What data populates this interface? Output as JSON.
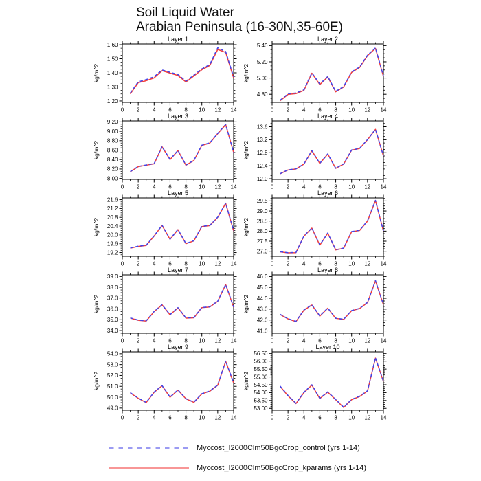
{
  "header": {
    "title": "Soil Liquid Water",
    "subtitle": "Arabian Peninsula (16-30N,35-60E)"
  },
  "legend": {
    "position": "bottom-left",
    "items": [
      {
        "label": "Myccost_I2000Clm50BgcCrop_control (yrs 1-14)",
        "color": "#4444e8",
        "style": "dashed"
      },
      {
        "label": "Myccost_I2000Clm50BgcCrop_kparams (yrs 1-14)",
        "color": "#f23b3b",
        "style": "solid"
      }
    ]
  },
  "chart_data": [
    {
      "type": "line",
      "title": "Layer 1",
      "ylabel": "kg/m^2",
      "x": [
        1,
        2,
        3,
        4,
        5,
        6,
        7,
        8,
        9,
        10,
        11,
        12,
        13,
        14
      ],
      "xlim": [
        0,
        14
      ],
      "xticks": [
        0,
        2,
        4,
        6,
        8,
        10,
        12,
        14
      ],
      "ylim": [
        1.19,
        1.605
      ],
      "yticks": [
        1.2,
        1.3,
        1.4,
        1.5,
        1.6
      ],
      "decimals": 2,
      "grid": false,
      "series": [
        {
          "name": "control",
          "color": "#4444e8",
          "style": "dashed",
          "values": [
            1.256,
            1.336,
            1.352,
            1.372,
            1.421,
            1.404,
            1.388,
            1.341,
            1.384,
            1.428,
            1.459,
            1.578,
            1.551,
            1.371
          ]
        },
        {
          "name": "kparams",
          "color": "#f23b3b",
          "style": "solid",
          "values": [
            1.25,
            1.33,
            1.344,
            1.364,
            1.415,
            1.398,
            1.381,
            1.335,
            1.378,
            1.422,
            1.452,
            1.566,
            1.545,
            1.364
          ]
        }
      ]
    },
    {
      "type": "line",
      "title": "Layer 2",
      "ylabel": "kg/m^2",
      "x": [
        1,
        2,
        3,
        4,
        5,
        6,
        7,
        8,
        9,
        10,
        11,
        12,
        13,
        14
      ],
      "xlim": [
        0,
        14
      ],
      "xticks": [
        0,
        2,
        4,
        6,
        8,
        10,
        12,
        14
      ],
      "ylim": [
        4.7,
        5.42
      ],
      "yticks": [
        4.8,
        5.0,
        5.2,
        5.4
      ],
      "decimals": 2,
      "grid": false,
      "series": [
        {
          "name": "control",
          "color": "#4444e8",
          "style": "dashed",
          "values": [
            4.726,
            4.806,
            4.816,
            4.856,
            5.065,
            4.927,
            5.02,
            4.836,
            4.896,
            5.076,
            5.136,
            5.282,
            5.372,
            5.026
          ]
        },
        {
          "name": "kparams",
          "color": "#f23b3b",
          "style": "solid",
          "values": [
            4.72,
            4.798,
            4.808,
            4.848,
            5.06,
            4.92,
            5.014,
            4.83,
            4.89,
            5.07,
            5.13,
            5.276,
            5.366,
            5.02
          ]
        }
      ]
    },
    {
      "type": "line",
      "title": "Layer 3",
      "ylabel": "kg/m^2",
      "x": [
        1,
        2,
        3,
        4,
        5,
        6,
        7,
        8,
        9,
        10,
        11,
        12,
        13,
        14
      ],
      "xlim": [
        0,
        14
      ],
      "xticks": [
        0,
        2,
        4,
        6,
        8,
        10,
        12,
        14
      ],
      "ylim": [
        7.98,
        9.22
      ],
      "yticks": [
        8.0,
        8.2,
        8.4,
        8.6,
        8.8,
        9.0,
        9.2
      ],
      "decimals": 2,
      "grid": false,
      "series": [
        {
          "name": "control",
          "color": "#4444e8",
          "style": "dashed",
          "values": [
            8.145,
            8.255,
            8.285,
            8.315,
            8.675,
            8.405,
            8.595,
            8.285,
            8.385,
            8.705,
            8.755,
            8.955,
            9.145,
            8.555
          ]
        },
        {
          "name": "kparams",
          "color": "#f23b3b",
          "style": "solid",
          "values": [
            8.14,
            8.25,
            8.28,
            8.31,
            8.67,
            8.4,
            8.59,
            8.28,
            8.38,
            8.7,
            8.75,
            8.95,
            9.14,
            8.55
          ]
        }
      ]
    },
    {
      "type": "line",
      "title": "Layer 4",
      "ylabel": "kg/m^2",
      "x": [
        1,
        2,
        3,
        4,
        5,
        6,
        7,
        8,
        9,
        10,
        11,
        12,
        13,
        14
      ],
      "xlim": [
        0,
        14
      ],
      "xticks": [
        0,
        2,
        4,
        6,
        8,
        10,
        12,
        14
      ],
      "ylim": [
        11.98,
        13.78
      ],
      "yticks": [
        12.0,
        12.4,
        12.8,
        13.2,
        13.6
      ],
      "decimals": 1,
      "grid": false,
      "series": [
        {
          "name": "control",
          "color": "#4444e8",
          "style": "dashed",
          "values": [
            12.155,
            12.275,
            12.305,
            12.455,
            12.865,
            12.475,
            12.765,
            12.325,
            12.455,
            12.885,
            12.935,
            13.205,
            13.525,
            12.705
          ]
        },
        {
          "name": "kparams",
          "color": "#f23b3b",
          "style": "solid",
          "values": [
            12.15,
            12.27,
            12.3,
            12.45,
            12.86,
            12.47,
            12.76,
            12.32,
            12.45,
            12.88,
            12.93,
            13.2,
            13.52,
            12.7
          ]
        }
      ]
    },
    {
      "type": "line",
      "title": "Layer 5",
      "ylabel": "kg/m^2",
      "x": [
        1,
        2,
        3,
        4,
        5,
        6,
        7,
        8,
        9,
        10,
        11,
        12,
        13,
        14
      ],
      "xlim": [
        0,
        14
      ],
      "xticks": [
        0,
        2,
        4,
        6,
        8,
        10,
        12,
        14
      ],
      "ylim": [
        19.03,
        21.68
      ],
      "yticks": [
        19.2,
        19.6,
        20.0,
        20.4,
        20.8,
        21.2,
        21.6
      ],
      "decimals": 1,
      "grid": false,
      "series": [
        {
          "name": "control",
          "color": "#4444e8",
          "style": "dashed",
          "values": [
            19.41,
            19.49,
            19.53,
            19.96,
            20.44,
            19.81,
            20.25,
            19.61,
            19.74,
            20.39,
            20.43,
            20.81,
            21.44,
            20.19
          ]
        },
        {
          "name": "kparams",
          "color": "#f23b3b",
          "style": "solid",
          "values": [
            19.4,
            19.48,
            19.52,
            19.95,
            20.43,
            19.8,
            20.24,
            19.6,
            19.73,
            20.38,
            20.42,
            20.8,
            21.43,
            20.18
          ]
        }
      ]
    },
    {
      "type": "line",
      "title": "Layer 6",
      "ylabel": "kg/m^2",
      "x": [
        1,
        2,
        3,
        4,
        5,
        6,
        7,
        8,
        9,
        10,
        11,
        12,
        13,
        14
      ],
      "xlim": [
        0,
        14
      ],
      "xticks": [
        0,
        2,
        4,
        6,
        8,
        10,
        12,
        14
      ],
      "ylim": [
        26.75,
        29.65
      ],
      "yticks": [
        27.0,
        27.5,
        28.0,
        28.5,
        29.0,
        29.5
      ],
      "decimals": 1,
      "grid": false,
      "series": [
        {
          "name": "control",
          "color": "#4444e8",
          "style": "dashed",
          "values": [
            26.98,
            26.93,
            26.94,
            27.76,
            28.16,
            27.31,
            27.91,
            27.08,
            27.16,
            27.98,
            28.04,
            28.51,
            29.53,
            28.01
          ]
        },
        {
          "name": "kparams",
          "color": "#f23b3b",
          "style": "solid",
          "values": [
            26.97,
            26.92,
            26.93,
            27.75,
            28.15,
            27.3,
            27.9,
            27.07,
            27.15,
            27.97,
            28.03,
            28.5,
            29.52,
            28.0
          ]
        }
      ]
    },
    {
      "type": "line",
      "title": "Layer 7",
      "ylabel": "kg/m^2",
      "x": [
        1,
        2,
        3,
        4,
        5,
        6,
        7,
        8,
        9,
        10,
        11,
        12,
        13,
        14
      ],
      "xlim": [
        0,
        14
      ],
      "xticks": [
        0,
        2,
        4,
        6,
        8,
        10,
        12,
        14
      ],
      "ylim": [
        33.75,
        39.15
      ],
      "yticks": [
        34.0,
        35.0,
        36.0,
        37.0,
        38.0,
        39.0
      ],
      "decimals": 1,
      "grid": false,
      "series": [
        {
          "name": "control",
          "color": "#4444e8",
          "style": "dashed",
          "values": [
            35.17,
            34.97,
            34.9,
            35.77,
            36.4,
            35.47,
            36.12,
            35.17,
            35.2,
            36.14,
            36.2,
            36.72,
            38.27,
            36.17
          ]
        },
        {
          "name": "kparams",
          "color": "#f23b3b",
          "style": "solid",
          "values": [
            35.15,
            34.95,
            34.88,
            35.75,
            36.38,
            35.45,
            36.1,
            35.15,
            35.18,
            36.12,
            36.18,
            36.7,
            38.25,
            36.15
          ]
        }
      ]
    },
    {
      "type": "line",
      "title": "Layer 8",
      "ylabel": "kg/m^2",
      "x": [
        1,
        2,
        3,
        4,
        5,
        6,
        7,
        8,
        9,
        10,
        11,
        12,
        13,
        14
      ],
      "xlim": [
        0,
        14
      ],
      "xticks": [
        0,
        2,
        4,
        6,
        8,
        10,
        12,
        14
      ],
      "ylim": [
        40.78,
        46.15
      ],
      "yticks": [
        41.0,
        42.0,
        43.0,
        44.0,
        45.0,
        46.0
      ],
      "decimals": 1,
      "grid": false,
      "series": [
        {
          "name": "control",
          "color": "#4444e8",
          "style": "dashed",
          "values": [
            42.52,
            42.12,
            41.87,
            42.92,
            43.4,
            42.37,
            43.1,
            42.17,
            42.07,
            42.87,
            43.07,
            43.62,
            45.62,
            43.42
          ]
        },
        {
          "name": "kparams",
          "color": "#f23b3b",
          "style": "solid",
          "values": [
            42.5,
            42.1,
            41.85,
            42.9,
            43.38,
            42.35,
            43.08,
            42.15,
            42.05,
            42.85,
            43.05,
            43.6,
            45.6,
            43.4
          ]
        }
      ]
    },
    {
      "type": "line",
      "title": "Layer 9",
      "ylabel": "kg/m^2",
      "x": [
        1,
        2,
        3,
        4,
        5,
        6,
        7,
        8,
        9,
        10,
        11,
        12,
        13,
        14
      ],
      "xlim": [
        0,
        14
      ],
      "xticks": [
        0,
        2,
        4,
        6,
        8,
        10,
        12,
        14
      ],
      "ylim": [
        48.8,
        54.18
      ],
      "yticks": [
        49.0,
        50.0,
        51.0,
        52.0,
        53.0,
        54.0
      ],
      "decimals": 1,
      "grid": false,
      "series": [
        {
          "name": "control",
          "color": "#4444e8",
          "style": "dashed",
          "values": [
            50.42,
            49.92,
            49.52,
            50.47,
            51.07,
            50.02,
            50.67,
            49.87,
            49.54,
            50.32,
            50.57,
            51.12,
            53.32,
            51.32
          ]
        },
        {
          "name": "kparams",
          "color": "#f23b3b",
          "style": "solid",
          "values": [
            50.4,
            49.9,
            49.5,
            50.45,
            51.05,
            50.0,
            50.65,
            49.85,
            49.52,
            50.3,
            50.55,
            51.1,
            53.3,
            51.3
          ]
        }
      ]
    },
    {
      "type": "line",
      "title": "Layer 10",
      "ylabel": "kg/m^2",
      "x": [
        1,
        2,
        3,
        4,
        5,
        6,
        7,
        8,
        9,
        10,
        11,
        12,
        13,
        14
      ],
      "xlim": [
        0,
        14
      ],
      "xticks": [
        0,
        2,
        4,
        6,
        8,
        10,
        12,
        14
      ],
      "ylim": [
        52.88,
        56.6
      ],
      "yticks": [
        53.0,
        53.5,
        54.0,
        54.5,
        55.0,
        55.5,
        56.0,
        56.5
      ],
      "decimals": 2,
      "grid": false,
      "series": [
        {
          "name": "control",
          "color": "#4444e8",
          "style": "dashed",
          "values": [
            54.42,
            53.82,
            53.32,
            54.02,
            54.5,
            53.64,
            54.05,
            53.57,
            53.07,
            53.57,
            53.77,
            54.12,
            56.22,
            54.72
          ]
        },
        {
          "name": "kparams",
          "color": "#f23b3b",
          "style": "solid",
          "values": [
            54.4,
            53.8,
            53.3,
            54.0,
            54.48,
            53.62,
            54.03,
            53.55,
            53.05,
            53.55,
            53.75,
            54.1,
            56.2,
            54.7
          ]
        }
      ]
    }
  ]
}
